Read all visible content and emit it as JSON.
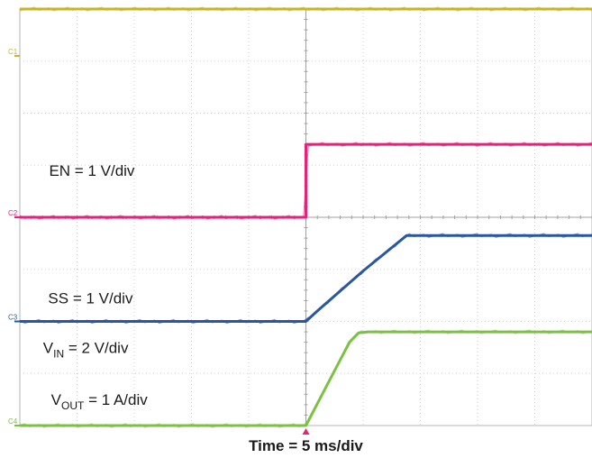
{
  "chart_data": {
    "type": "line",
    "title": "",
    "xlabel": "Time = 5 ms/div",
    "x_unit": "ms",
    "x_per_div": 5,
    "x_divisions": 10,
    "xlim": [
      0,
      50
    ],
    "y_divisions": 8,
    "grid": true,
    "trigger_marker_x": 25,
    "channels": [
      {
        "id": "C1",
        "name": "V_IN",
        "label_main": "V",
        "label_sub": "IN",
        "label_rest": " = 2 V/div",
        "color": "#c8b428",
        "marker_div": 7.1,
        "x": [
          0,
          50
        ],
        "y_div": [
          8.0,
          8.0
        ]
      },
      {
        "id": "C2",
        "name": "EN",
        "label_main": "EN = 1 V/div",
        "label_sub": "",
        "label_rest": "",
        "color": "#e8217b",
        "marker_div": 4.0,
        "x": [
          0,
          25,
          25,
          50
        ],
        "y_div": [
          4.0,
          4.0,
          5.4,
          5.4
        ]
      },
      {
        "id": "C3",
        "name": "SS",
        "label_main": "SS = 1 V/div",
        "label_sub": "",
        "label_rest": "",
        "color": "#2a57a3",
        "marker_div": 2.0,
        "x": [
          0,
          25,
          26,
          30,
          33.8,
          50
        ],
        "y_div": [
          2.0,
          2.0,
          2.2,
          2.97,
          3.65,
          3.65
        ]
      },
      {
        "id": "C4",
        "name": "V_OUT",
        "label_main": "V",
        "label_sub": "OUT",
        "label_rest": " = 1 A/div",
        "color": "#7cc242",
        "marker_div": 0.0,
        "x": [
          0,
          25,
          28.8,
          29.6,
          30.4,
          50
        ],
        "y_div": [
          0.0,
          0.0,
          1.6,
          1.78,
          1.8,
          1.8
        ]
      }
    ]
  }
}
